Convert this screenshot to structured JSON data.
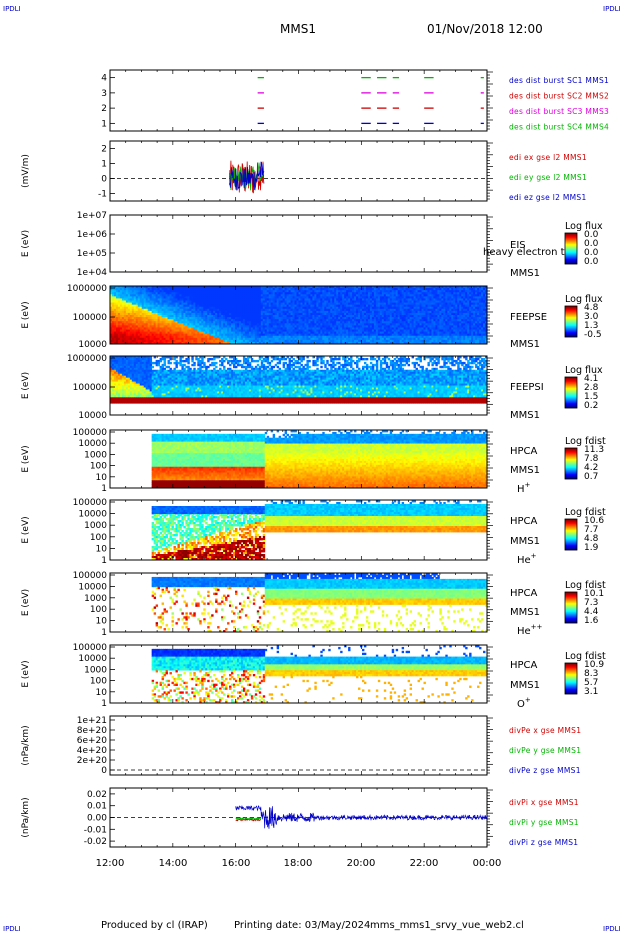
{
  "corner_label": "IPDLI",
  "title": "MMS1",
  "datetime": "01/Nov/2018 12:00",
  "footer": {
    "produced": "Produced by cl (IRAP)",
    "printed": "Printing date: 03/May/2024",
    "script": "mms_mms1_srvy_vue_web2.cl"
  },
  "colors": {
    "blue": "#0000c8",
    "red": "#d00000",
    "magenta": "#e000e0",
    "green": "#00b400"
  },
  "x_axis": {
    "ticks": [
      "12:00",
      "14:00",
      "16:00",
      "18:00",
      "20:00",
      "22:00",
      "00:00"
    ]
  },
  "chart_data": [
    {
      "id": "burst",
      "type": "line",
      "ylim": [
        0.5,
        4.5
      ],
      "ytick_labels": [
        "1",
        "2",
        "3",
        "4"
      ],
      "xlim_hours": [
        12,
        24
      ],
      "series": [
        {
          "name": "des dist burst SC1 MMS1",
          "color": "#0000c8",
          "level": 1,
          "intervals": [
            [
              16.7,
              16.9
            ],
            [
              20.0,
              20.3
            ],
            [
              20.5,
              20.8
            ],
            [
              21.0,
              21.2
            ],
            [
              22.0,
              22.3
            ],
            [
              23.8,
              23.9
            ]
          ]
        },
        {
          "name": "des dist burst SC2 MMS2",
          "color": "#d00000",
          "level": 2,
          "intervals": [
            [
              16.7,
              16.9
            ],
            [
              20.0,
              20.3
            ],
            [
              20.5,
              20.8
            ],
            [
              21.0,
              21.2
            ],
            [
              22.0,
              22.3
            ],
            [
              23.8,
              23.9
            ]
          ]
        },
        {
          "name": "des dist burst SC3 MMS3",
          "color": "#e000e0",
          "level": 3,
          "intervals": [
            [
              16.7,
              16.9
            ],
            [
              20.0,
              20.3
            ],
            [
              20.5,
              20.8
            ],
            [
              21.0,
              21.2
            ],
            [
              22.0,
              22.3
            ],
            [
              23.8,
              23.9
            ]
          ]
        },
        {
          "name": "des dist burst SC4 MMS4",
          "color": "#00b400",
          "level": 4,
          "intervals": [
            [
              16.7,
              16.9
            ],
            [
              20.0,
              20.3
            ],
            [
              20.5,
              20.8
            ],
            [
              21.0,
              21.2
            ],
            [
              22.0,
              22.3
            ],
            [
              23.8,
              23.9
            ]
          ]
        }
      ]
    },
    {
      "id": "edi",
      "type": "line",
      "ylabel": "(mV/m)",
      "ylim": [
        -1.5,
        2.5
      ],
      "ytick_labels": [
        "-1",
        "0",
        "1",
        "2"
      ],
      "series": [
        {
          "name": "edi ex gse l2 MMS1",
          "color": "#d00000"
        },
        {
          "name": "edi ey gse l2 MMS1",
          "color": "#00b400"
        },
        {
          "name": "edi ez gse l2 MMS1",
          "color": "#0000c8"
        }
      ],
      "data_range_hours": [
        15.8,
        16.9
      ]
    },
    {
      "id": "eis",
      "type": "heatmap",
      "ylabel": "E (eV)",
      "ytick_labels": [
        "1e+07",
        "1e+06",
        "1e+05",
        "1e+04"
      ],
      "instrument": [
        "EIS",
        "MMS1"
      ],
      "overlap_text": "heavy electron to",
      "colorbar": {
        "title": "Log flux",
        "ticks": [
          "0.0",
          "0.0",
          "0.0",
          "0.0"
        ]
      }
    },
    {
      "id": "feepse",
      "type": "heatmap",
      "ylabel": "E (eV)",
      "ytick_labels": [
        "1000000",
        "100000",
        "10000"
      ],
      "instrument": [
        "FEEPSE",
        "MMS1"
      ],
      "colorbar": {
        "title": "Log flux",
        "ticks": [
          "4.8",
          "3.0",
          "1.3",
          "-0.5"
        ]
      }
    },
    {
      "id": "feepsi",
      "type": "heatmap",
      "ylabel": "E (eV)",
      "ytick_labels": [
        "1000000",
        "100000",
        "10000"
      ],
      "instrument": [
        "FEEPSI",
        "MMS1"
      ],
      "colorbar": {
        "title": "Log flux",
        "ticks": [
          "4.1",
          "2.8",
          "1.5",
          "0.2"
        ]
      }
    },
    {
      "id": "hpca_h",
      "type": "heatmap",
      "ylabel": "E (eV)",
      "ytick_labels": [
        "100000",
        "10000",
        "1000",
        "100",
        "10",
        "1"
      ],
      "instrument": [
        "HPCA",
        "MMS1"
      ],
      "species": {
        "base": "H",
        "sup": "+"
      },
      "colorbar": {
        "title": "Log fdist",
        "ticks": [
          "11.3",
          "7.8",
          "4.2",
          "0.7"
        ]
      }
    },
    {
      "id": "hpca_he",
      "type": "heatmap",
      "ylabel": "E (eV)",
      "ytick_labels": [
        "100000",
        "10000",
        "1000",
        "100",
        "10",
        "1"
      ],
      "instrument": [
        "HPCA",
        "MMS1"
      ],
      "species": {
        "base": "He",
        "sup": "+"
      },
      "colorbar": {
        "title": "Log fdist",
        "ticks": [
          "10.6",
          "7.7",
          "4.8",
          "1.9"
        ]
      }
    },
    {
      "id": "hpca_he2",
      "type": "heatmap",
      "ylabel": "E (eV)",
      "ytick_labels": [
        "100000",
        "10000",
        "1000",
        "100",
        "10",
        "1"
      ],
      "instrument": [
        "HPCA",
        "MMS1"
      ],
      "species": {
        "base": "He",
        "sup": "++"
      },
      "colorbar": {
        "title": "Log fdist",
        "ticks": [
          "10.1",
          "7.3",
          "4.4",
          "1.6"
        ]
      }
    },
    {
      "id": "hpca_o",
      "type": "heatmap",
      "ylabel": "E (eV)",
      "ytick_labels": [
        "100000",
        "10000",
        "1000",
        "100",
        "10",
        "1"
      ],
      "instrument": [
        "HPCA",
        "MMS1"
      ],
      "species": {
        "base": "O",
        "sup": "+"
      },
      "colorbar": {
        "title": "Log fdist",
        "ticks": [
          "10.9",
          "8.3",
          "5.7",
          "3.1"
        ]
      }
    },
    {
      "id": "divpe",
      "type": "line",
      "ylabel": "(nPa/km)",
      "ytick_labels": [
        "1e+21",
        "8e+20",
        "6e+20",
        "4e+20",
        "2e+20",
        "0"
      ],
      "series": [
        {
          "name": "divPe x gse MMS1",
          "color": "#d00000"
        },
        {
          "name": "divPe y gse MMS1",
          "color": "#00b400"
        },
        {
          "name": "divPe z gse MMS1",
          "color": "#0000c8"
        }
      ]
    },
    {
      "id": "divpi",
      "type": "line",
      "ylabel": "(nPa/km)",
      "ylim": [
        -0.025,
        0.025
      ],
      "ytick_labels": [
        "0.02",
        "0.01",
        "0.00",
        "-0.01",
        "-0.02"
      ],
      "series": [
        {
          "name": "divPi x gse MMS1",
          "color": "#d00000"
        },
        {
          "name": "divPi y gse MMS1",
          "color": "#00b400"
        },
        {
          "name": "divPi z gse MMS1",
          "color": "#0000c8"
        }
      ]
    }
  ]
}
